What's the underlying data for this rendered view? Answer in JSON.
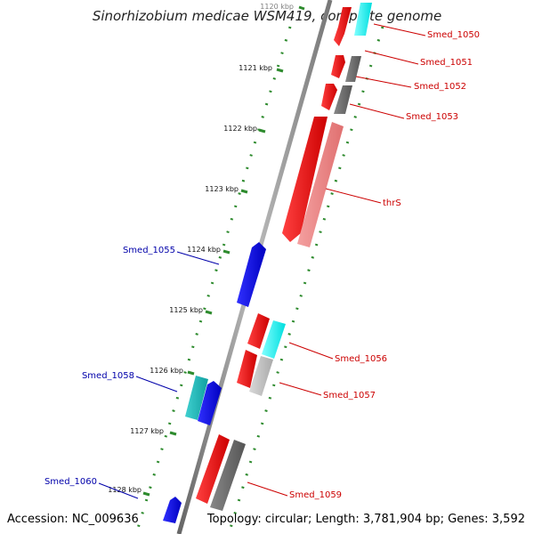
{
  "title": "Sinorhizobium medicae WSM419, complete genome",
  "footer": {
    "accession": "Accession: NC_009636",
    "summary": "Topology: circular; Length: 3,781,904 bp; Genes: 3,592"
  },
  "colors": {
    "backbone": "#888888",
    "tick": "#2e8b2e",
    "forward_label": "#cc0000",
    "reverse_label": "#0000aa",
    "red": "#ff0000",
    "pink": "#f08080",
    "grey": "#777777",
    "light_grey": "#c8c8c8",
    "cyan": "#00ffff",
    "teal": "#20c0c0",
    "blue": "#0000ff"
  },
  "ticks": [
    "1120 kbp",
    "1121 kbp",
    "1122 kbp",
    "1123 kbp",
    "1124 kbp",
    "1125 kbp",
    "1126 kbp",
    "1127 kbp",
    "1128 kbp"
  ],
  "forward_labels": [
    "Smed_1050",
    "Smed_1051",
    "Smed_1052",
    "Smed_1053",
    "thrS",
    "Smed_1056",
    "Smed_1057",
    "Smed_1059"
  ],
  "reverse_labels": [
    "Smed_1055",
    "Smed_1058",
    "Smed_1060"
  ]
}
